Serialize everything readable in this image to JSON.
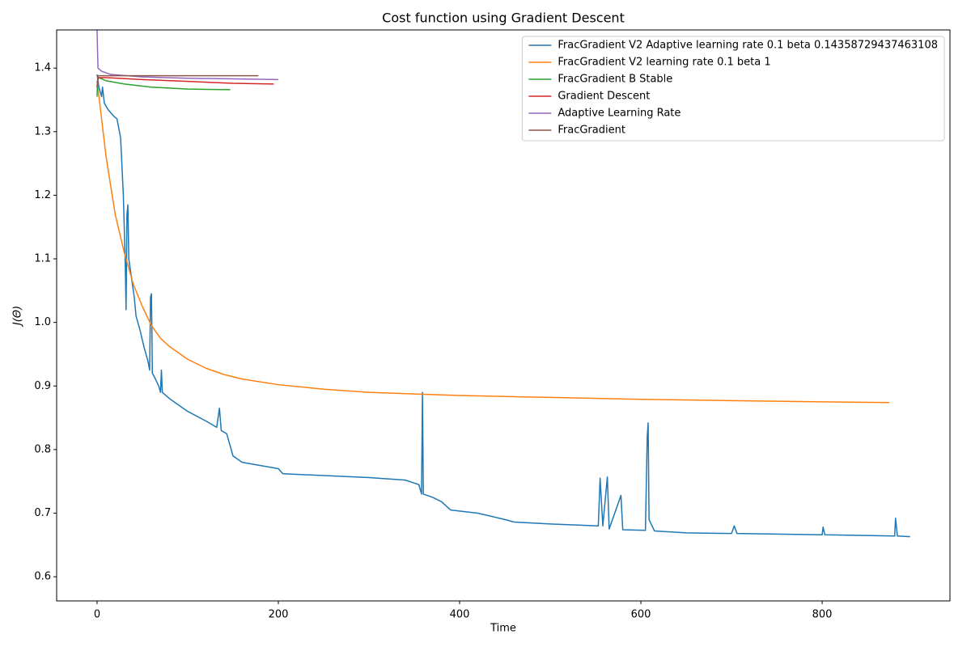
{
  "chart_data": {
    "type": "line",
    "title": "Cost function using Gradient Descent",
    "xlabel": "Time",
    "ylabel": "J(Θ)",
    "xlim": [
      -44.6,
      941
    ],
    "ylim": [
      0.562,
      1.46
    ],
    "xticks": [
      0,
      200,
      400,
      600,
      800
    ],
    "yticks": [
      0.6,
      0.7,
      0.8,
      0.9,
      {
        "value": 1,
        "label": "1.0"
      },
      1.1,
      1.2,
      1.3,
      1.4
    ],
    "legend": "upper right",
    "series": [
      {
        "name": "FracGradient V2 Adaptive learning rate 0.1 beta 0.14358729437463108",
        "color": "#1f77b4",
        "x": [
          0,
          2,
          5,
          6,
          8,
          12,
          18,
          22,
          26,
          29,
          31,
          32,
          33,
          34,
          35,
          38,
          41,
          43,
          47,
          52,
          56,
          58,
          59,
          60,
          61,
          63,
          68,
          70,
          71,
          72,
          80,
          100,
          120,
          132,
          135,
          137,
          143,
          148,
          150,
          160,
          200,
          205,
          300,
          340,
          355,
          358,
          359,
          360,
          370,
          380,
          390,
          420,
          450,
          460,
          500,
          553,
          555,
          558,
          563,
          565,
          578,
          580,
          605,
          607,
          608,
          609,
          615,
          650,
          700,
          703,
          706,
          800,
          801,
          803,
          880,
          881,
          883,
          897
        ],
        "values": [
          1.39,
          1.37,
          1.355,
          1.37,
          1.345,
          1.335,
          1.325,
          1.32,
          1.29,
          1.2,
          1.1,
          1.02,
          1.17,
          1.185,
          1.1,
          1.07,
          1.04,
          1.01,
          0.99,
          0.96,
          0.94,
          0.925,
          1.04,
          1.045,
          0.92,
          0.915,
          0.9,
          0.89,
          0.925,
          0.89,
          0.88,
          0.86,
          0.845,
          0.835,
          0.865,
          0.83,
          0.825,
          0.8,
          0.79,
          0.78,
          0.77,
          0.762,
          0.756,
          0.752,
          0.745,
          0.73,
          0.89,
          0.73,
          0.725,
          0.718,
          0.705,
          0.7,
          0.69,
          0.686,
          0.683,
          0.68,
          0.755,
          0.68,
          0.757,
          0.675,
          0.728,
          0.674,
          0.673,
          0.82,
          0.842,
          0.69,
          0.672,
          0.669,
          0.668,
          0.68,
          0.668,
          0.666,
          0.678,
          0.666,
          0.664,
          0.692,
          0.664,
          0.663
        ]
      },
      {
        "name": "FracGradient V2 learning rate 0.1 beta 1",
        "color": "#ff7f0e",
        "x": [
          0,
          5,
          10,
          20,
          30,
          40,
          50,
          60,
          70,
          80,
          100,
          120,
          140,
          160,
          200,
          250,
          300,
          400,
          500,
          600,
          700,
          800,
          874
        ],
        "values": [
          1.38,
          1.32,
          1.26,
          1.17,
          1.11,
          1.06,
          1.025,
          0.995,
          0.975,
          0.962,
          0.942,
          0.928,
          0.918,
          0.911,
          0.902,
          0.895,
          0.89,
          0.885,
          0.882,
          0.879,
          0.877,
          0.875,
          0.874
        ]
      },
      {
        "name": "FracGradient B Stable",
        "color": "#2ca02c",
        "x": [
          0,
          0.5,
          2,
          10,
          30,
          60,
          100,
          147
        ],
        "values": [
          1.355,
          1.38,
          1.385,
          1.38,
          1.375,
          1.37,
          1.367,
          1.366
        ]
      },
      {
        "name": "Gradient Descent",
        "color": "#d62728",
        "x": [
          0,
          1,
          10,
          50,
          100,
          150,
          195
        ],
        "values": [
          1.37,
          1.385,
          1.385,
          1.382,
          1.379,
          1.376,
          1.375
        ]
      },
      {
        "name": "Adaptive Learning Rate",
        "color": "#9467bd",
        "x": [
          0,
          1,
          5,
          15,
          50,
          100,
          200
        ],
        "values": [
          1.46,
          1.4,
          1.395,
          1.39,
          1.386,
          1.384,
          1.382
        ]
      },
      {
        "name": "FracGradient",
        "color": "#8c564b",
        "x": [
          0,
          1,
          178
        ],
        "values": [
          1.37,
          1.388,
          1.388
        ]
      }
    ]
  }
}
